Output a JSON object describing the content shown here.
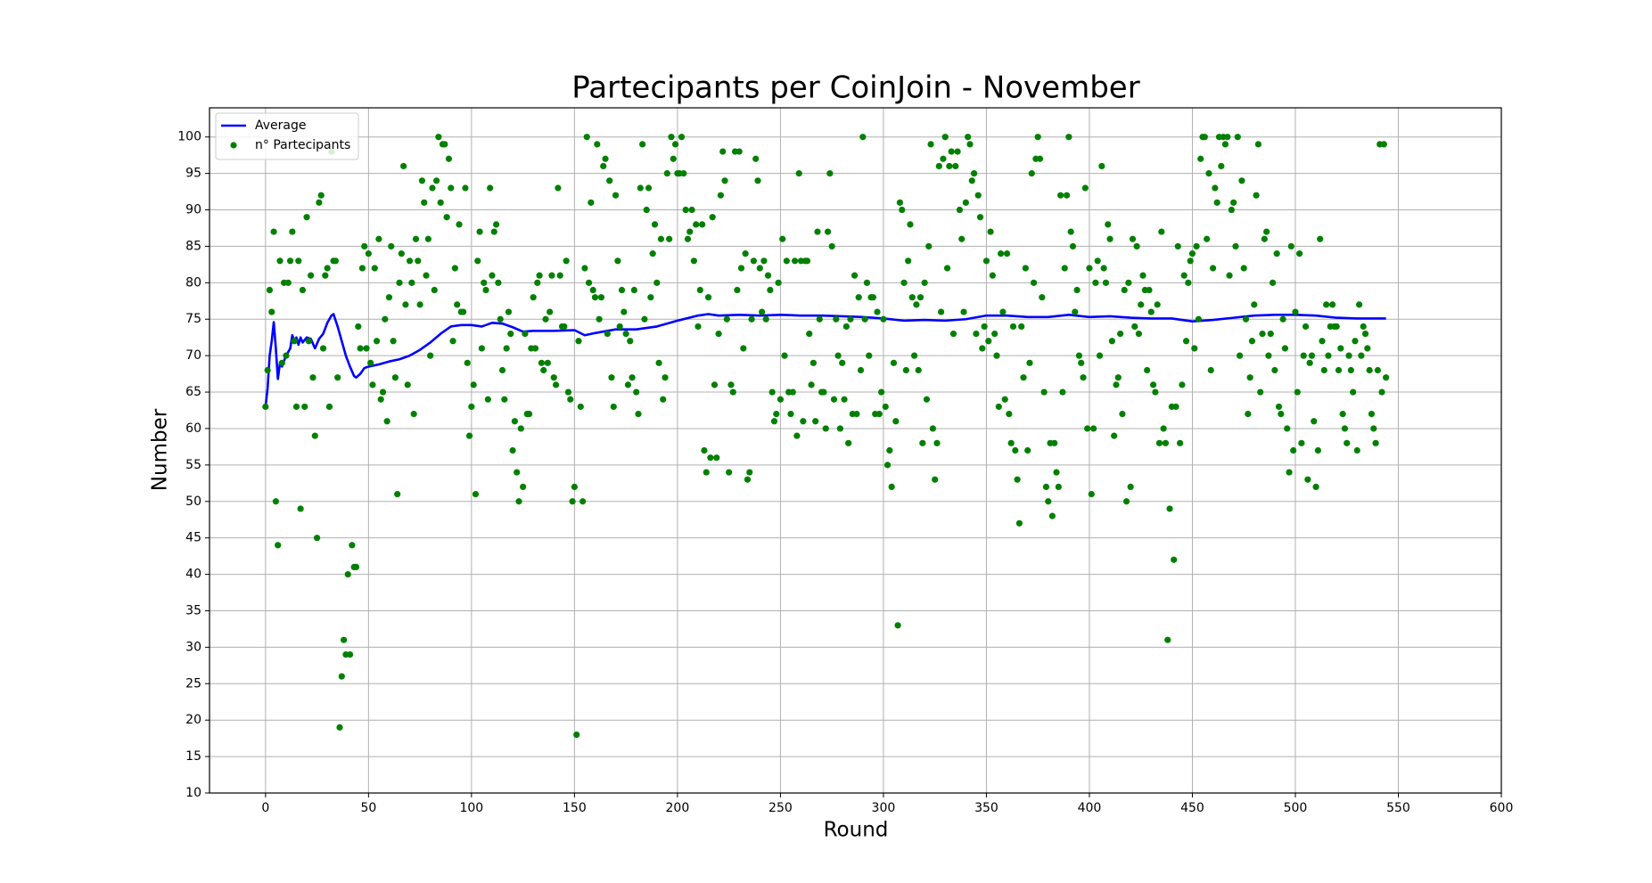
{
  "chart_data": {
    "type": "scatter",
    "title": "Partecipants per CoinJoin - November",
    "xlabel": "Round",
    "ylabel": "Number",
    "xlim": [
      -27.2,
      600
    ],
    "ylim": [
      10,
      104
    ],
    "xticks": [
      0,
      50,
      100,
      150,
      200,
      250,
      300,
      350,
      400,
      450,
      500,
      550,
      600
    ],
    "yticks": [
      10,
      15,
      20,
      25,
      30,
      35,
      40,
      45,
      50,
      55,
      60,
      65,
      70,
      75,
      80,
      85,
      90,
      95,
      100
    ],
    "grid": true,
    "legend": "upper left",
    "series": [
      {
        "name": "Average",
        "type": "line",
        "color": "#0000ff",
        "x": [
          0,
          1,
          2,
          3,
          4,
          5,
          6,
          7,
          8,
          9,
          10,
          12,
          13,
          14,
          15,
          16,
          17,
          18,
          20,
          22,
          24,
          26,
          28,
          30,
          32,
          33,
          35,
          37,
          39,
          41,
          43,
          44,
          46,
          48,
          50,
          55,
          60,
          65,
          70,
          75,
          80,
          85,
          90,
          95,
          100,
          105,
          110,
          115,
          120,
          125,
          130,
          140,
          150,
          155,
          160,
          170,
          180,
          190,
          200,
          210,
          215,
          220,
          230,
          240,
          250,
          260,
          270,
          280,
          290,
          300,
          310,
          320,
          330,
          340,
          350,
          360,
          370,
          380,
          390,
          400,
          410,
          420,
          430,
          440,
          450,
          460,
          470,
          480,
          490,
          500,
          510,
          520,
          530,
          544
        ],
        "values": [
          63,
          65.5,
          70,
          72,
          74.6,
          71,
          66.8,
          69,
          68.5,
          69.3,
          70,
          71,
          72.8,
          72,
          72.5,
          71.5,
          72.5,
          71.8,
          72.5,
          72.3,
          71,
          72.3,
          73,
          74.5,
          75.5,
          75.7,
          74,
          72,
          70,
          68.5,
          67.2,
          67,
          67.5,
          68.3,
          68.5,
          68.8,
          69.2,
          69.5,
          70,
          70.8,
          71.8,
          73,
          74,
          74.2,
          74.2,
          74,
          74.5,
          74.4,
          73.9,
          73.3,
          73.4,
          73.4,
          73.5,
          72.8,
          73.1,
          73.6,
          73.6,
          74,
          74.8,
          75.5,
          75.7,
          75.5,
          75.6,
          75.5,
          75.6,
          75.5,
          75.5,
          75.4,
          75.3,
          75.1,
          74.8,
          74.9,
          74.8,
          75,
          75.5,
          75.5,
          75.3,
          75.3,
          75.6,
          75.3,
          75.4,
          75.2,
          75.1,
          75.1,
          74.7,
          74.9,
          75.2,
          75.5,
          75.6,
          75.6,
          75.5,
          75.2,
          75.1,
          75.1
        ]
      },
      {
        "name": "n° Partecipants",
        "type": "scatter",
        "color": "#008000",
        "x": [
          0,
          1,
          2,
          3,
          4,
          5,
          6,
          7,
          8,
          9,
          10,
          11,
          12,
          13,
          14,
          15,
          16,
          17,
          18,
          19,
          20,
          21,
          22,
          23,
          24,
          25,
          26,
          27,
          28,
          29,
          30,
          31,
          32,
          33,
          34,
          35,
          36,
          37,
          38,
          39,
          40,
          41,
          42,
          43,
          44,
          45,
          46,
          47,
          48,
          49,
          50,
          51,
          52,
          53,
          54,
          55,
          56,
          57,
          58,
          59,
          60,
          61,
          62,
          63,
          64,
          65,
          66,
          67,
          68,
          69,
          70,
          71,
          72,
          73,
          74,
          75,
          76,
          77,
          78,
          79,
          80,
          81,
          82,
          83,
          84,
          85,
          86,
          87,
          88,
          89,
          90,
          91,
          92,
          93,
          94,
          95,
          96,
          97,
          98,
          99,
          100,
          101,
          102,
          103,
          104,
          105,
          106,
          107,
          108,
          109,
          110,
          111,
          112,
          113,
          114,
          115,
          116,
          117,
          118,
          119,
          120,
          121,
          122,
          123,
          124,
          125,
          126,
          127,
          128,
          129,
          130,
          131,
          132,
          133,
          134,
          135,
          136,
          137,
          138,
          139,
          140,
          141,
          142,
          143,
          144,
          145,
          146,
          147,
          148,
          149,
          150,
          151,
          152,
          153,
          154,
          155,
          156,
          157,
          158,
          159,
          160,
          161,
          162,
          163,
          164,
          165,
          166,
          167,
          168,
          169,
          170,
          171,
          172,
          173,
          174,
          175,
          176,
          177,
          178,
          179,
          180,
          181,
          182,
          183,
          184,
          185,
          186,
          187,
          188,
          189,
          190,
          191,
          192,
          193,
          194,
          195,
          196,
          197,
          198,
          199,
          200,
          201,
          202,
          203,
          204,
          205,
          206,
          207,
          208,
          209,
          210,
          211,
          212,
          213,
          214,
          215,
          216,
          217,
          218,
          219,
          220,
          221,
          222,
          223,
          224,
          225,
          226,
          227,
          228,
          229,
          230,
          231,
          232,
          233,
          234,
          235,
          236,
          237,
          238,
          239,
          240,
          241,
          242,
          243,
          244,
          245,
          246,
          247,
          248,
          249,
          250,
          251,
          252,
          253,
          254,
          255,
          256,
          257,
          258,
          259,
          260,
          261,
          262,
          263,
          264,
          265,
          266,
          267,
          268,
          269,
          270,
          271,
          272,
          273,
          274,
          275,
          276,
          277,
          278,
          279,
          280,
          281,
          282,
          283,
          284,
          285,
          286,
          287,
          288,
          289,
          290,
          291,
          292,
          293,
          294,
          295,
          296,
          297,
          298,
          299,
          300,
          301,
          302,
          303,
          304,
          305,
          306,
          307,
          308,
          309,
          310,
          311,
          312,
          313,
          314,
          315,
          316,
          317,
          318,
          319,
          320,
          321,
          322,
          323,
          324,
          325,
          326,
          327,
          328,
          329,
          330,
          331,
          332,
          333,
          334,
          335,
          336,
          337,
          338,
          339,
          340,
          341,
          342,
          343,
          344,
          345,
          346,
          347,
          348,
          349,
          350,
          351,
          352,
          353,
          354,
          355,
          356,
          357,
          358,
          359,
          360,
          361,
          362,
          363,
          364,
          365,
          366,
          367,
          368,
          369,
          370,
          371,
          372,
          373,
          374,
          375,
          376,
          377,
          378,
          379,
          380,
          381,
          382,
          383,
          384,
          385,
          386,
          387,
          388,
          389,
          390,
          391,
          392,
          393,
          394,
          395,
          396,
          397,
          398,
          399,
          400,
          401,
          402,
          403,
          404,
          405,
          406,
          407,
          408,
          409,
          410,
          411,
          412,
          413,
          414,
          415,
          416,
          417,
          418,
          419,
          420,
          421,
          422,
          423,
          424,
          425,
          426,
          427,
          428,
          429,
          430,
          431,
          432,
          433,
          434,
          435,
          436,
          437,
          438,
          439,
          440,
          441,
          442,
          443,
          444,
          445,
          446,
          447,
          448,
          449,
          450,
          451,
          452,
          453,
          454,
          455,
          456,
          457,
          458,
          459,
          460,
          461,
          462,
          463,
          464,
          465,
          466,
          467,
          468,
          469,
          470,
          471,
          472,
          473,
          474,
          475,
          476,
          477,
          478,
          479,
          480,
          481,
          482,
          483,
          484,
          485,
          486,
          487,
          488,
          489,
          490,
          491,
          492,
          493,
          494,
          495,
          496,
          497,
          498,
          499,
          500,
          501,
          502,
          503,
          504,
          505,
          506,
          507,
          508,
          509,
          510,
          511,
          512,
          513,
          514,
          515,
          516,
          517,
          518,
          519,
          520,
          521,
          522,
          523,
          524,
          525,
          526,
          527,
          528,
          529,
          530,
          531,
          532,
          533,
          534,
          535,
          536,
          537,
          538,
          539,
          540,
          541,
          542,
          543,
          544
        ],
        "values": [
          63,
          68,
          79,
          76,
          87,
          50,
          44,
          83,
          69,
          80,
          70,
          80,
          83,
          87,
          72,
          63,
          83,
          49,
          79,
          63,
          89,
          72,
          81,
          67,
          59,
          45,
          91,
          92,
          71,
          81,
          82,
          63,
          98,
          83,
          83,
          67,
          19,
          26,
          31,
          29,
          40,
          29,
          44,
          41,
          41,
          74,
          71,
          82,
          85,
          71,
          84,
          69,
          66,
          82,
          72,
          86,
          64,
          65,
          75,
          61,
          78,
          85,
          72,
          67,
          51,
          80,
          84,
          96,
          77,
          66,
          83,
          80,
          62,
          86,
          83,
          77,
          94,
          91,
          81,
          86,
          70,
          93,
          79,
          94,
          100,
          91,
          99,
          99,
          89,
          97,
          93,
          72,
          82,
          77,
          88,
          76,
          76,
          93,
          69,
          59,
          63,
          66,
          51,
          83,
          87,
          71,
          80,
          79,
          64,
          93,
          81,
          87,
          88,
          80,
          75,
          68,
          64,
          71,
          76,
          73,
          57,
          61,
          54,
          50,
          60,
          52,
          73,
          62,
          62,
          71,
          78,
          71,
          80,
          81,
          69,
          68,
          75,
          69,
          76,
          81,
          67,
          66,
          93,
          81,
          74,
          74,
          83,
          65,
          64,
          50,
          52,
          18,
          72,
          63,
          50,
          82,
          100,
          80,
          91,
          79,
          78,
          99,
          75,
          78,
          96,
          97,
          73,
          94,
          67,
          63,
          92,
          83,
          74,
          79,
          76,
          73,
          66,
          72,
          67,
          79,
          65,
          62,
          93,
          99,
          75,
          90,
          93,
          78,
          84,
          88,
          80,
          69,
          86,
          64,
          67,
          95,
          86,
          100,
          97,
          99,
          95,
          95,
          100,
          95,
          90,
          86,
          87,
          90,
          83,
          88,
          74,
          79,
          88,
          57,
          54,
          78,
          56,
          89,
          66,
          56,
          73,
          92,
          98,
          94,
          75,
          54,
          66,
          65,
          98,
          79,
          98,
          82,
          71,
          84,
          53,
          54,
          75,
          83,
          97,
          94,
          82,
          76,
          83,
          75,
          81,
          79,
          65,
          61,
          62,
          80,
          64,
          86,
          70,
          83,
          65,
          62,
          65,
          83,
          59,
          95,
          83,
          61,
          83,
          83,
          73,
          66,
          69,
          61,
          87,
          75,
          65,
          65,
          60,
          87,
          95,
          85,
          64,
          75,
          70,
          60,
          69,
          64,
          74,
          58,
          75,
          62,
          81,
          62,
          78,
          68,
          100,
          75,
          80,
          70,
          78,
          78,
          62,
          76,
          62,
          65,
          75,
          63,
          55,
          57,
          52,
          69,
          61,
          33,
          91,
          90,
          80,
          68,
          83,
          88,
          78,
          70,
          77,
          68,
          78,
          58,
          80,
          64,
          85,
          99,
          60,
          53,
          58,
          96,
          76,
          97,
          100,
          82,
          96,
          98,
          73,
          96,
          98,
          90,
          86,
          76,
          91,
          100,
          99,
          94,
          95,
          73,
          92,
          89,
          71,
          74,
          83,
          72,
          87,
          81,
          73,
          70,
          63,
          84,
          76,
          64,
          84,
          62,
          58,
          74,
          57,
          53,
          47,
          74,
          67,
          82,
          57,
          69,
          95,
          80,
          97,
          100,
          97,
          78,
          65,
          52,
          50,
          58,
          48,
          58,
          54,
          52,
          92,
          65,
          82,
          92,
          100,
          87,
          85,
          76,
          79,
          70,
          69,
          67,
          93,
          60,
          82,
          51,
          60,
          80,
          83,
          70,
          96,
          82,
          80,
          88,
          86,
          72,
          59,
          66,
          67,
          73,
          62,
          79,
          50,
          80,
          52,
          86,
          74,
          85,
          73,
          77,
          81,
          79,
          68,
          79,
          76,
          66,
          65,
          77,
          58,
          87,
          60,
          58,
          31,
          49,
          63,
          42,
          63,
          85,
          58,
          66,
          81,
          72,
          80,
          83,
          84,
          71,
          85,
          75,
          97,
          100,
          100,
          86,
          95,
          68,
          82,
          93,
          91,
          100,
          96,
          100,
          99,
          100,
          81,
          90,
          91,
          85,
          100,
          70,
          94,
          82,
          75,
          62,
          67,
          72,
          77,
          92,
          99,
          65,
          73,
          86,
          87,
          70,
          73,
          80,
          68,
          84,
          63,
          62,
          75,
          71,
          60,
          54,
          85,
          57,
          76,
          65,
          84,
          58,
          70,
          74,
          53,
          69,
          70,
          61,
          52,
          57,
          86,
          72,
          68,
          77,
          70,
          74,
          77,
          74,
          74,
          68,
          71,
          62,
          60,
          58,
          70,
          68,
          65,
          72,
          57,
          77,
          70,
          74,
          73,
          71,
          68,
          62,
          60,
          58,
          68,
          99,
          65,
          99,
          67
        ]
      }
    ]
  }
}
